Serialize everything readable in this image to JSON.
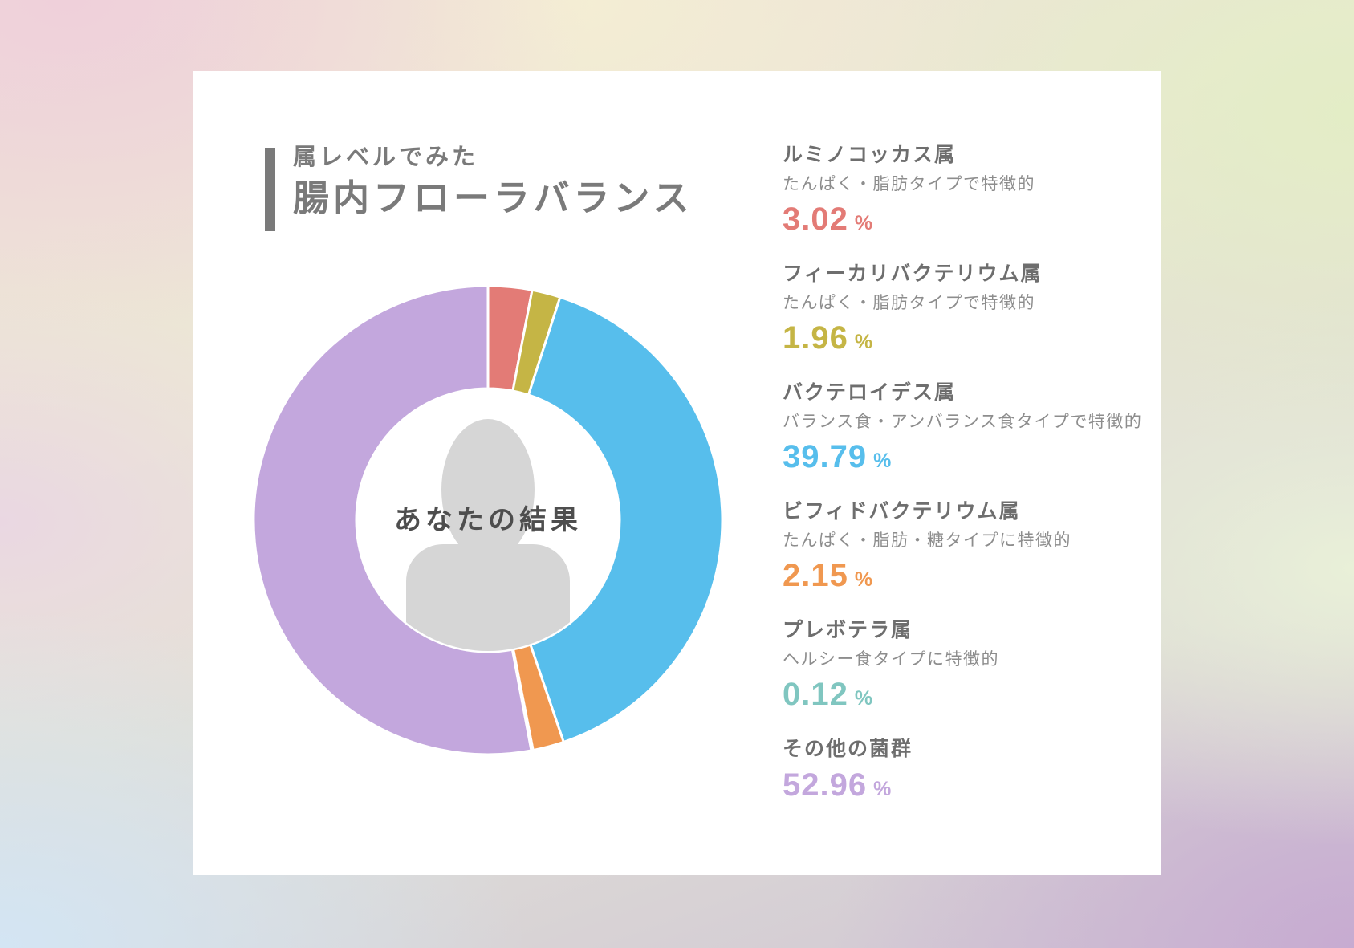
{
  "title": {
    "line1": "属レベルでみた",
    "line2": "腸内フローラバランス",
    "accent_color": "#7A7A7A"
  },
  "chart_data": {
    "type": "pie",
    "variant": "donut",
    "title": "属レベルでみた 腸内フローラバランス",
    "center_label": "あなたの結果",
    "unit": "%",
    "start_angle_deg": 0,
    "direction": "clockwise",
    "total": 100,
    "series": [
      {
        "name": "ルミノコッカス属",
        "description": "たんぱく・脂肪タイプで特徴的",
        "value": 3.02,
        "display": "3.02",
        "color": "#E37B76"
      },
      {
        "name": "フィーカリバクテリウム属",
        "description": "たんぱく・脂肪タイプで特徴的",
        "value": 1.96,
        "display": "1.96",
        "color": "#C5B545"
      },
      {
        "name": "バクテロイデス属",
        "description": "バランス食・アンバランス食タイプで特徴的",
        "value": 39.79,
        "display": "39.79",
        "color": "#57BEEC"
      },
      {
        "name": "ビフィドバクテリウム属",
        "description": "たんぱく・脂肪・糖タイプに特徴的",
        "value": 2.15,
        "display": "2.15",
        "color": "#F09850"
      },
      {
        "name": "プレボテラ属",
        "description": "ヘルシー食タイプに特徴的",
        "value": 0.12,
        "display": "0.12",
        "color": "#80C6C0"
      },
      {
        "name": "その他の菌群",
        "description": "",
        "value": 52.96,
        "display": "52.96",
        "color": "#C3A7DD"
      }
    ],
    "styles": {
      "gap_stroke": "#FFFFFF",
      "silhouette_color": "#D6D6D6",
      "center_text_color": "#4E4E4E",
      "legend_name_color": "#6E6E6E",
      "legend_desc_color": "#8D8D8D"
    },
    "layout_hints": {
      "legend_position": "right",
      "grid": false,
      "outer_radius_px": 292,
      "inner_radius_px": 164
    }
  },
  "page": {
    "card_background": "#FFFFFF",
    "background_palette": [
      "#EFD0DA",
      "#F4EED4",
      "#E3EDC6",
      "#E9F0D8",
      "#C7ABD1",
      "#D3E5F4",
      "#EAD7E2"
    ]
  }
}
